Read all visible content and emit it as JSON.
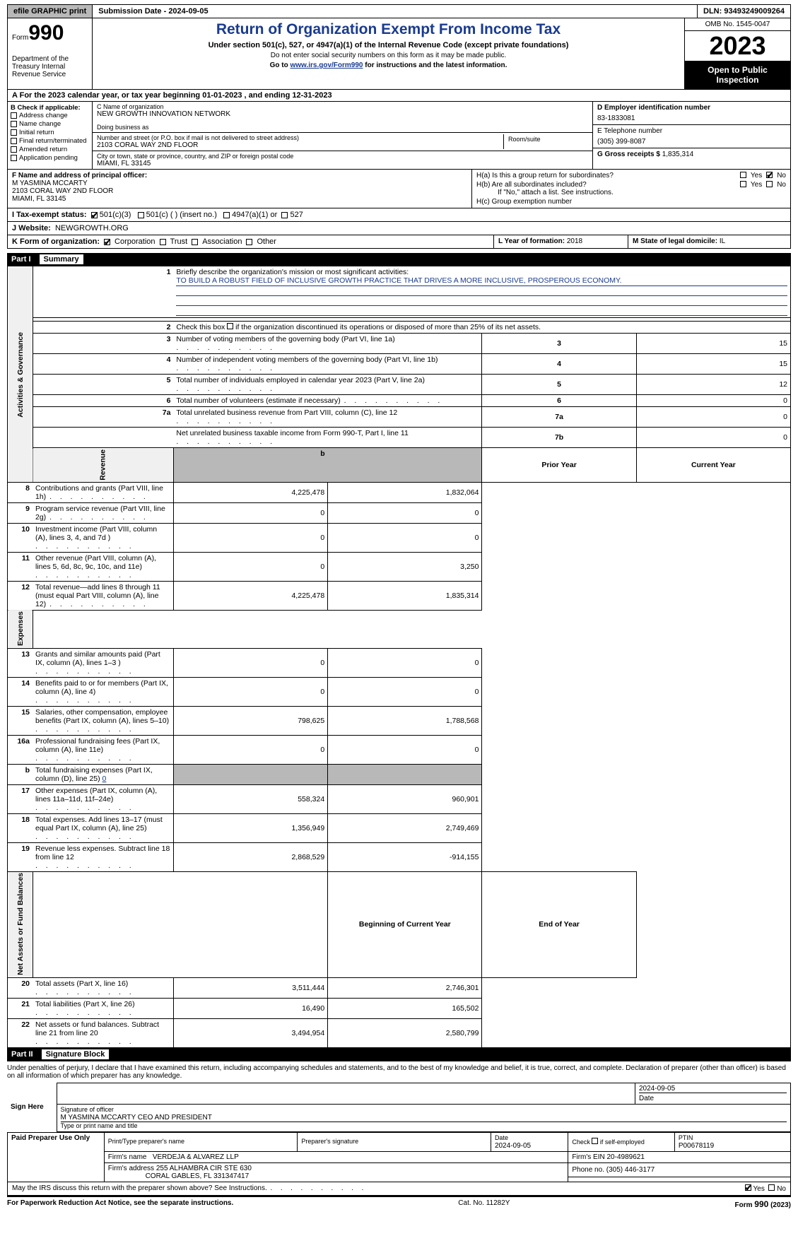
{
  "topbar": {
    "efile_btn": "efile GRAPHIC print",
    "submission_date_label": "Submission Date - 2024-09-05",
    "dln_label": "DLN: 93493249009264"
  },
  "header": {
    "form_label": "Form",
    "form_number": "990",
    "dept": "Department of the Treasury Internal Revenue Service",
    "title": "Return of Organization Exempt From Income Tax",
    "subtitle": "Under section 501(c), 527, or 4947(a)(1) of the Internal Revenue Code (except private foundations)",
    "instruction1": "Do not enter social security numbers on this form as it may be made public.",
    "instruction2_pre": "Go to ",
    "instruction2_link": "www.irs.gov/Form990",
    "instruction2_post": " for instructions and the latest information.",
    "omb": "OMB No. 1545-0047",
    "year": "2023",
    "open_public": "Open to Public Inspection"
  },
  "line_a": "For the 2023 calendar year, or tax year beginning 01-01-2023    , and ending 12-31-2023",
  "box_b": {
    "label": "B Check if applicable:",
    "addr": "Address change",
    "name": "Name change",
    "initial": "Initial return",
    "final": "Final return/terminated",
    "amended": "Amended return",
    "app": "Application pending"
  },
  "box_c": {
    "name_label": "C Name of organization",
    "name": "NEW GROWTH INNOVATION NETWORK",
    "dba_label": "Doing business as",
    "street_label": "Number and street (or P.O. box if mail is not delivered to street address)",
    "street": "2103 CORAL WAY 2ND FLOOR",
    "room_label": "Room/suite",
    "city_label": "City or town, state or province, country, and ZIP or foreign postal code",
    "city": "MIAMI, FL  33145"
  },
  "box_d": {
    "label": "D Employer identification number",
    "value": "83-1833081"
  },
  "box_e": {
    "label": "E Telephone number",
    "value": "(305) 399-8087"
  },
  "box_g": {
    "label": "G Gross receipts $",
    "value": "1,835,314"
  },
  "box_f": {
    "label": "F  Name and address of principal officer:",
    "name": "M YASMINA MCCARTY",
    "addr1": "2103 CORAL WAY 2ND FLOOR",
    "addr2": "MIAMI, FL  33145"
  },
  "box_h": {
    "a": "H(a)  Is this a group return for subordinates?",
    "b": "H(b)  Are all subordinates included?",
    "b_note": "If \"No,\" attach a list. See instructions.",
    "c": "H(c)  Group exemption number",
    "yes": "Yes",
    "no": "No"
  },
  "box_i": {
    "label": "I   Tax-exempt status:",
    "c3": "501(c)(3)",
    "c": "501(c) (   ) (insert no.)",
    "a1": "4947(a)(1) or",
    "527": "527"
  },
  "box_j": {
    "label": "J   Website:",
    "value": "NEWGROWTH.ORG"
  },
  "box_k": {
    "label": "K Form of organization:",
    "corp": "Corporation",
    "trust": "Trust",
    "assoc": "Association",
    "other": "Other"
  },
  "box_l": {
    "label": "L Year of formation:",
    "value": "2018"
  },
  "box_m": {
    "label": "M State of legal domicile:",
    "value": "IL"
  },
  "part1": {
    "header_num": "Part I",
    "header_title": "Summary",
    "sections": {
      "gov": "Activities & Governance",
      "rev": "Revenue",
      "exp": "Expenses",
      "na": "Net Assets or Fund Balances"
    },
    "line1_label": "Briefly describe the organization's mission or most significant activities:",
    "mission": "TO BUILD A ROBUST FIELD OF INCLUSIVE GROWTH PRACTICE THAT DRIVES A MORE INCLUSIVE, PROSPEROUS ECONOMY.",
    "line2": "Check this box      if the organization discontinued its operations or disposed of more than 25% of its net assets.",
    "prior_year": "Prior Year",
    "current_year": "Current Year",
    "begin_year": "Beginning of Current Year",
    "end_year": "End of Year",
    "rows_gov": [
      {
        "n": "3",
        "d": "Number of voting members of the governing body (Part VI, line 1a)",
        "k": "3",
        "v": "15"
      },
      {
        "n": "4",
        "d": "Number of independent voting members of the governing body (Part VI, line 1b)",
        "k": "4",
        "v": "15"
      },
      {
        "n": "5",
        "d": "Total number of individuals employed in calendar year 2023 (Part V, line 2a)",
        "k": "5",
        "v": "12"
      },
      {
        "n": "6",
        "d": "Total number of volunteers (estimate if necessary)",
        "k": "6",
        "v": "0"
      },
      {
        "n": "7a",
        "d": "Total unrelated business revenue from Part VIII, column (C), line 12",
        "k": "7a",
        "v": "0"
      },
      {
        "n": "",
        "d": "Net unrelated business taxable income from Form 990-T, Part I, line 11",
        "k": "7b",
        "v": "0"
      }
    ],
    "rows_rev": [
      {
        "n": "8",
        "d": "Contributions and grants (Part VIII, line 1h)",
        "p": "4,225,478",
        "c": "1,832,064"
      },
      {
        "n": "9",
        "d": "Program service revenue (Part VIII, line 2g)",
        "p": "0",
        "c": "0"
      },
      {
        "n": "10",
        "d": "Investment income (Part VIII, column (A), lines 3, 4, and 7d )",
        "p": "0",
        "c": "0"
      },
      {
        "n": "11",
        "d": "Other revenue (Part VIII, column (A), lines 5, 6d, 8c, 9c, 10c, and 11e)",
        "p": "0",
        "c": "3,250"
      },
      {
        "n": "12",
        "d": "Total revenue—add lines 8 through 11 (must equal Part VIII, column (A), line 12)",
        "p": "4,225,478",
        "c": "1,835,314"
      }
    ],
    "rows_exp": [
      {
        "n": "13",
        "d": "Grants and similar amounts paid (Part IX, column (A), lines 1–3 )",
        "p": "0",
        "c": "0"
      },
      {
        "n": "14",
        "d": "Benefits paid to or for members (Part IX, column (A), line 4)",
        "p": "0",
        "c": "0"
      },
      {
        "n": "15",
        "d": "Salaries, other compensation, employee benefits (Part IX, column (A), lines 5–10)",
        "p": "798,625",
        "c": "1,788,568"
      },
      {
        "n": "16a",
        "d": "Professional fundraising fees (Part IX, column (A), line 11e)",
        "p": "0",
        "c": "0"
      },
      {
        "n": "b",
        "d": "Total fundraising expenses (Part IX, column (D), line 25)",
        "v25": "0",
        "gray": true
      },
      {
        "n": "17",
        "d": "Other expenses (Part IX, column (A), lines 11a–11d, 11f–24e)",
        "p": "558,324",
        "c": "960,901"
      },
      {
        "n": "18",
        "d": "Total expenses. Add lines 13–17 (must equal Part IX, column (A), line 25)",
        "p": "1,356,949",
        "c": "2,749,469"
      },
      {
        "n": "19",
        "d": "Revenue less expenses. Subtract line 18 from line 12",
        "p": "2,868,529",
        "c": "-914,155"
      }
    ],
    "rows_na": [
      {
        "n": "20",
        "d": "Total assets (Part X, line 16)",
        "p": "3,511,444",
        "c": "2,746,301"
      },
      {
        "n": "21",
        "d": "Total liabilities (Part X, line 26)",
        "p": "16,490",
        "c": "165,502"
      },
      {
        "n": "22",
        "d": "Net assets or fund balances. Subtract line 21 from line 20",
        "p": "3,494,954",
        "c": "2,580,799"
      }
    ]
  },
  "part2": {
    "header_num": "Part II",
    "header_title": "Signature Block",
    "penalties": "Under penalties of perjury, I declare that I have examined this return, including accompanying schedules and statements, and to the best of my knowledge and belief, it is true, correct, and complete. Declaration of preparer (other than officer) is based on all information of which preparer has any knowledge.",
    "sign_here": "Sign Here",
    "sig_officer": "Signature of officer",
    "officer_name": "M YASMINA MCCARTY  CEO AND PRESIDENT",
    "type_print": "Type or print name and title",
    "date_label": "Date",
    "date_value": "2024-09-05",
    "paid_label": "Paid Preparer Use Only",
    "print_name": "Print/Type preparer's name",
    "prep_sig": "Preparer's signature",
    "prep_date_label": "Date",
    "prep_date": "2024-09-05",
    "check_self": "Check        if self-employed",
    "ptin_label": "PTIN",
    "ptin": "P00678119",
    "firm_name_label": "Firm's name",
    "firm_name": "VERDEJA & ALVAREZ LLP",
    "firm_ein_label": "Firm's EIN",
    "firm_ein": "20-4989621",
    "firm_addr_label": "Firm's address",
    "firm_addr1": "255 ALHAMBRA CIR STE 630",
    "firm_addr2": "CORAL GABLES, FL  331347417",
    "phone_label": "Phone no.",
    "phone": "(305) 446-3177",
    "discuss": "May the IRS discuss this return with the preparer shown above? See Instructions.",
    "yes": "Yes",
    "no": "No"
  },
  "footer": {
    "left": "For Paperwork Reduction Act Notice, see the separate instructions.",
    "mid": "Cat. No. 11282Y",
    "right": "Form 990 (2023)"
  }
}
